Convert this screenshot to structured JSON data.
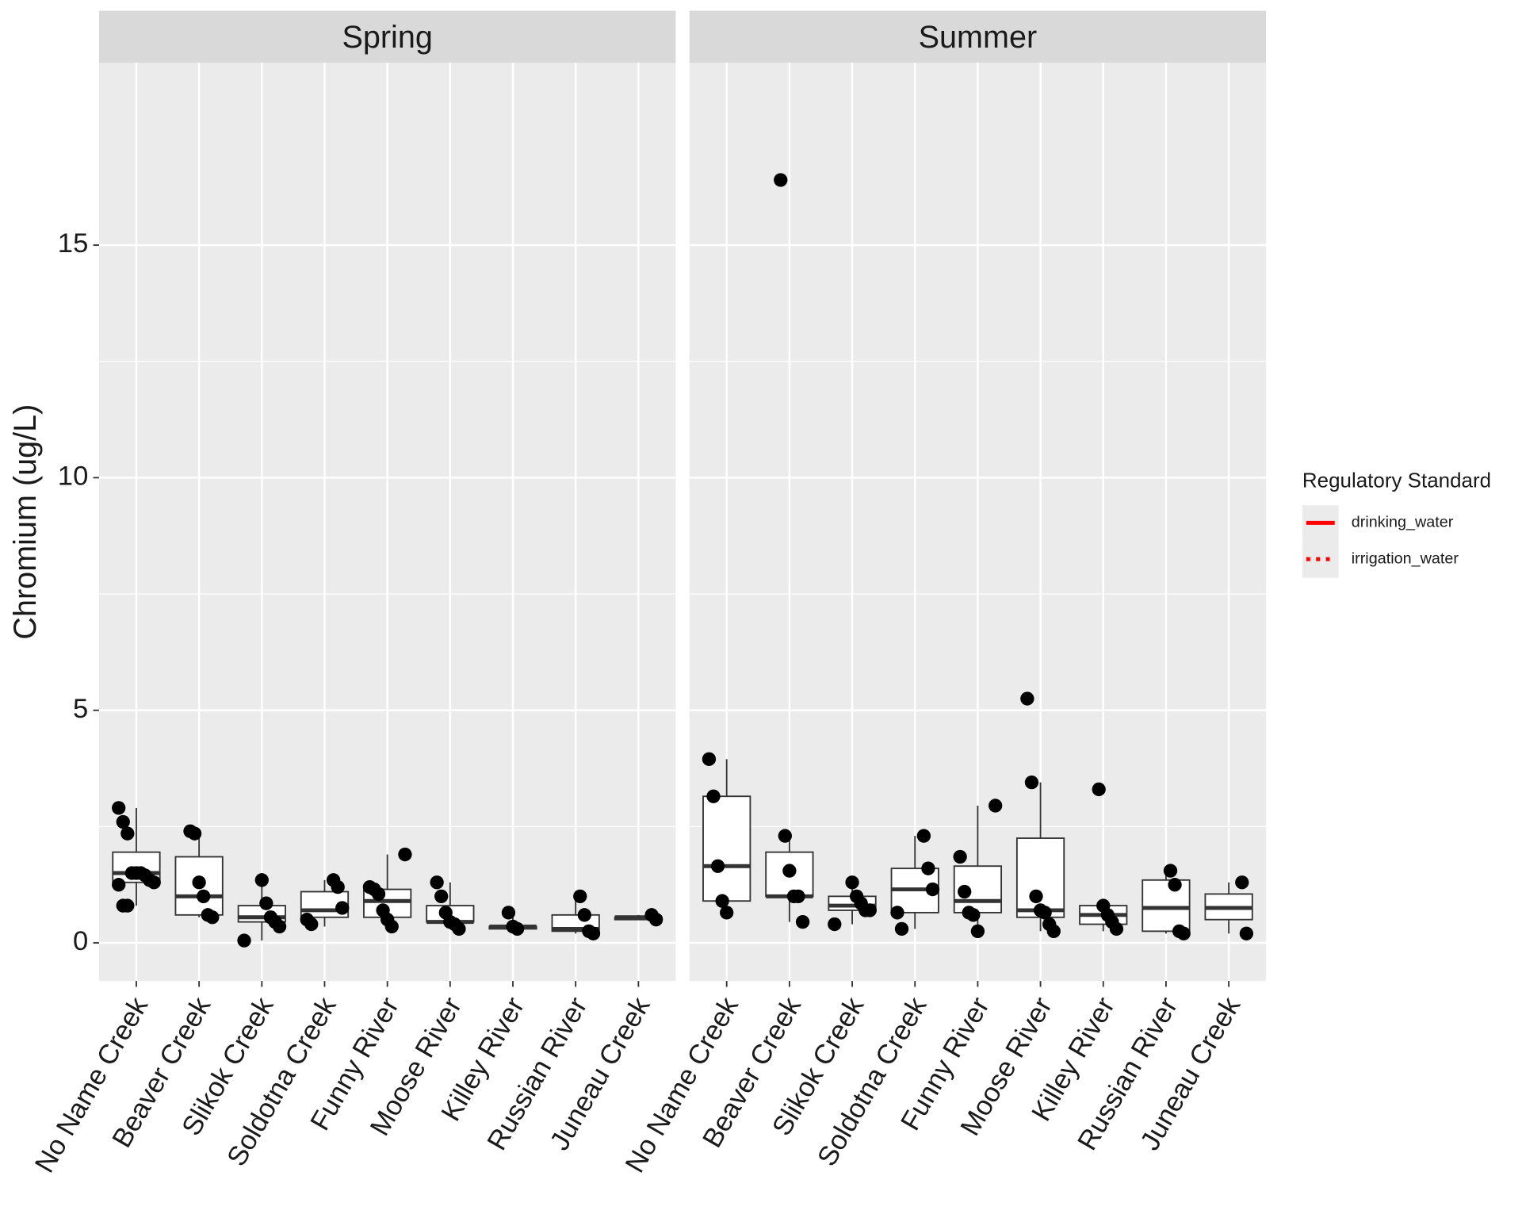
{
  "chart_data": {
    "type": "box",
    "ylabel": "Chromium (ug/L)",
    "ylim": [
      -0.82,
      18.92
    ],
    "yticks": [
      0,
      5,
      10,
      15
    ],
    "grid": true,
    "categories": [
      "No Name Creek",
      "Beaver Creek",
      "Slikok Creek",
      "Soldotna Creek",
      "Funny River",
      "Moose River",
      "Killey River",
      "Russian River",
      "Juneau Creek"
    ],
    "legend": {
      "title": "Regulatory Standard",
      "position": "right",
      "entries": [
        {
          "name": "drinking_water",
          "color": "#ff0000",
          "dash": "solid"
        },
        {
          "name": "irrigation_water",
          "color": "#ff0000",
          "dash": "dotted"
        }
      ]
    },
    "panels": [
      {
        "title": "Spring",
        "boxes": [
          {
            "whisker_low": 0.8,
            "q1": 1.3,
            "median": 1.5,
            "q3": 1.95,
            "whisker_high": 2.9,
            "points": [
              2.9,
              2.6,
              2.35,
              1.5,
              1.5,
              1.5,
              1.45,
              1.35,
              1.3,
              1.25,
              0.8,
              0.8
            ]
          },
          {
            "whisker_low": 0.55,
            "q1": 0.6,
            "median": 1.0,
            "q3": 1.85,
            "whisker_high": 2.4,
            "points": [
              2.4,
              2.35,
              1.3,
              1.0,
              0.6,
              0.55
            ]
          },
          {
            "whisker_low": 0.05,
            "q1": 0.45,
            "median": 0.55,
            "q3": 0.8,
            "whisker_high": 1.35,
            "points": [
              1.35,
              0.85,
              0.55,
              0.45,
              0.35,
              0.05
            ]
          },
          {
            "whisker_low": 0.35,
            "q1": 0.55,
            "median": 0.7,
            "q3": 1.1,
            "whisker_high": 1.35,
            "points": [
              1.35,
              1.2,
              0.75,
              0.5,
              0.4
            ]
          },
          {
            "whisker_low": 0.35,
            "q1": 0.55,
            "median": 0.9,
            "q3": 1.15,
            "whisker_high": 1.9,
            "points": [
              1.9,
              1.2,
              1.15,
              1.05,
              0.7,
              0.5,
              0.35
            ]
          },
          {
            "whisker_low": 0.3,
            "q1": 0.45,
            "median": 0.45,
            "q3": 0.8,
            "whisker_high": 1.3,
            "points": [
              1.3,
              1.0,
              0.65,
              0.45,
              0.4,
              0.3
            ]
          },
          {
            "whisker_low": 0.3,
            "q1": 0.3,
            "median": 0.35,
            "q3": 0.35,
            "whisker_high": 0.65,
            "points": [
              0.65,
              0.35,
              0.3
            ]
          },
          {
            "whisker_low": 0.2,
            "q1": 0.25,
            "median": 0.3,
            "q3": 0.6,
            "whisker_high": 1.0,
            "points": [
              1.0,
              0.6,
              0.25,
              0.2
            ]
          },
          {
            "whisker_low": 0.5,
            "q1": 0.5,
            "median": 0.55,
            "q3": 0.55,
            "whisker_high": 0.6,
            "points": [
              0.6,
              0.5
            ]
          }
        ]
      },
      {
        "title": "Summer",
        "boxes": [
          {
            "whisker_low": 0.65,
            "q1": 0.9,
            "median": 1.65,
            "q3": 3.15,
            "whisker_high": 3.95,
            "points": [
              3.95,
              3.15,
              1.65,
              0.9,
              0.65
            ]
          },
          {
            "whisker_low": 0.45,
            "q1": 1.0,
            "median": 1.0,
            "q3": 1.95,
            "whisker_high": 2.3,
            "points": [
              16.4,
              2.3,
              1.55,
              1.0,
              1.0,
              0.45
            ]
          },
          {
            "whisker_low": 0.4,
            "q1": 0.7,
            "median": 0.8,
            "q3": 1.0,
            "whisker_high": 1.3,
            "points": [
              1.3,
              1.0,
              0.85,
              0.7,
              0.7,
              0.4
            ]
          },
          {
            "whisker_low": 0.3,
            "q1": 0.65,
            "median": 1.15,
            "q3": 1.6,
            "whisker_high": 2.3,
            "points": [
              2.3,
              1.6,
              1.15,
              0.65,
              0.3
            ]
          },
          {
            "whisker_low": 0.25,
            "q1": 0.65,
            "median": 0.9,
            "q3": 1.65,
            "whisker_high": 2.95,
            "points": [
              2.95,
              1.85,
              1.1,
              0.65,
              0.6,
              0.25
            ]
          },
          {
            "whisker_low": 0.25,
            "q1": 0.55,
            "median": 0.7,
            "q3": 2.25,
            "whisker_high": 3.45,
            "points": [
              5.25,
              3.45,
              1.0,
              0.7,
              0.65,
              0.4,
              0.25
            ]
          },
          {
            "whisker_low": 0.25,
            "q1": 0.4,
            "median": 0.6,
            "q3": 0.8,
            "whisker_high": 0.8,
            "points": [
              3.3,
              0.8,
              0.6,
              0.45,
              0.3
            ]
          },
          {
            "whisker_low": 0.2,
            "q1": 0.25,
            "median": 0.75,
            "q3": 1.35,
            "whisker_high": 1.55,
            "points": [
              1.55,
              1.25,
              0.25,
              0.2
            ]
          },
          {
            "whisker_low": 0.2,
            "q1": 0.5,
            "median": 0.75,
            "q3": 1.05,
            "whisker_high": 1.3,
            "points": [
              1.3,
              0.2
            ]
          }
        ]
      }
    ]
  }
}
